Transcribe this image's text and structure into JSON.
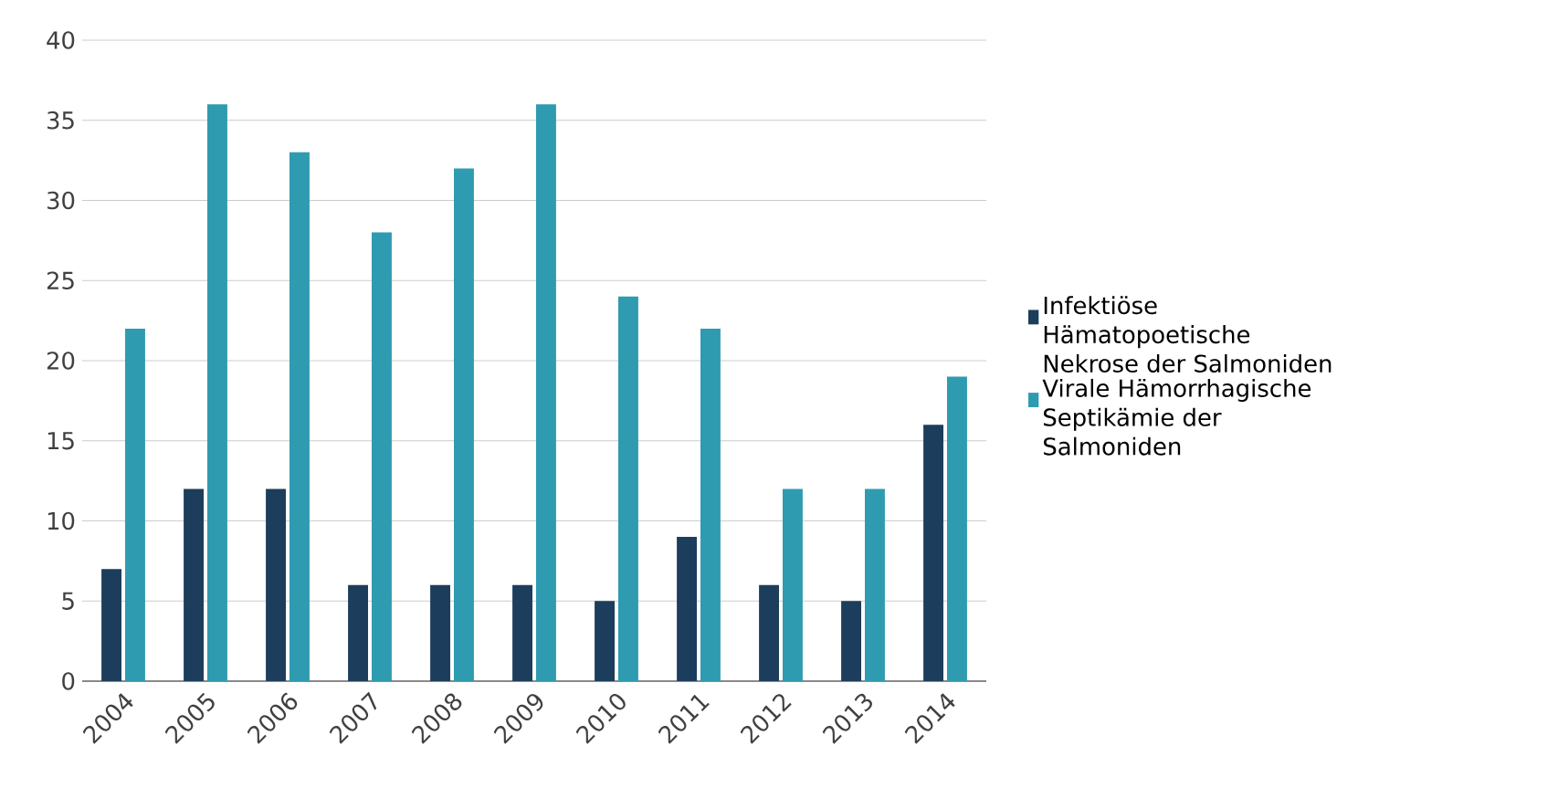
{
  "chart_data": {
    "type": "bar",
    "categories": [
      "2004",
      "2005",
      "2006",
      "2007",
      "2008",
      "2009",
      "2010",
      "2011",
      "2012",
      "2013",
      "2014"
    ],
    "series": [
      {
        "name": "Infektiöse Hämatopoetische Nekrose der Salmoniden",
        "color": "#1d3d5c",
        "values": [
          7,
          12,
          12,
          6,
          6,
          6,
          5,
          9,
          6,
          5,
          16
        ]
      },
      {
        "name": "Virale Hämorrhagische Septikämie der Salmoniden",
        "color": "#2f9bb0",
        "values": [
          22,
          36,
          33,
          28,
          32,
          36,
          24,
          22,
          12,
          12,
          19
        ]
      }
    ],
    "ylim": [
      0,
      40
    ],
    "yticks": [
      0,
      5,
      10,
      15,
      20,
      25,
      30,
      35,
      40
    ],
    "grid": "y",
    "legend": "right"
  }
}
